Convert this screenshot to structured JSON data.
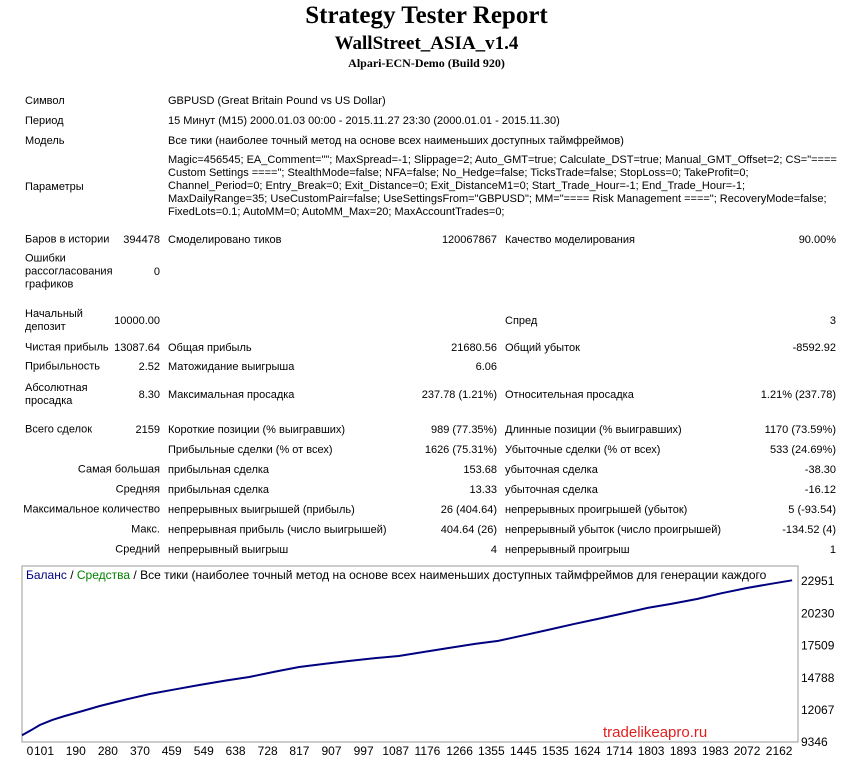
{
  "header": {
    "title": "Strategy Tester Report",
    "subtitle": "WallStreet_ASIA_v1.4",
    "build": "Alpari-ECN-Demo (Build 920)"
  },
  "info": [
    {
      "label": "Символ",
      "value": "GBPUSD (Great Britain Pound vs US Dollar)"
    },
    {
      "label": "Период",
      "value": "15 Минут (M15) 2000.01.03 00:00 - 2015.11.27 23:30 (2000.01.01 - 2015.11.30)"
    },
    {
      "label": "Модель",
      "value": "Все тики (наиболее точный метод на основе всех наименьших доступных таймфреймов)"
    }
  ],
  "params": {
    "label": "Параметры",
    "lines": [
      "Magic=456545; EA_Comment=\"\"; MaxSpread=-1; Slippage=2; Auto_GMT=true; Calculate_DST=true; Manual_GMT_Offset=2; CS=\"====",
      "Custom Settings ====\"; StealthMode=false; NFA=false; No_Hedge=false; TicksTrade=false; StopLoss=0; TakeProfit=0;",
      "Channel_Period=0; Entry_Break=0; Exit_Distance=0; Exit_DistanceM1=0; Start_Trade_Hour=-1; End_Trade_Hour=-1;",
      "MaxDailyRange=35; UseCustomPair=false; UseSettingsFrom=\"GBPUSD\"; MM=\"==== Risk Management ====\"; RecoveryMode=false;",
      "FixedLots=0.1; AutoMM=0; AutoMM_Max=20; MaxAccountTrades=0;"
    ]
  },
  "stats": [
    {
      "l1": "Баров в истории",
      "v1": "394478",
      "l2": "Смоделировано тиков",
      "v2": "120067867",
      "l3": "Качество моделирования",
      "v3": "90.00%"
    },
    {
      "l1": "Ошибки рассогласования графиков",
      "v1": "0"
    },
    {
      "l1": "Начальный депозит",
      "v1": "10000.00",
      "l3": "Спред",
      "v3": "3"
    },
    {
      "l1": "Чистая прибыль",
      "v1": "13087.64",
      "l2": "Общая прибыль",
      "v2": "21680.56",
      "l3": "Общий убыток",
      "v3": "-8592.92"
    },
    {
      "l1": "Прибыльность",
      "v1": "2.52",
      "l2": "Матожидание выигрыша",
      "v2": "6.06"
    },
    {
      "l1": "Абсолютная просадка",
      "v1": "8.30",
      "l2": "Максимальная просадка",
      "v2": "237.78 (1.21%)",
      "l3": "Относительная просадка",
      "v3": "1.21% (237.78)"
    },
    {
      "l1": "Всего сделок",
      "v1": "2159",
      "l2": "Короткие позиции (% выигравших)",
      "v2": "989 (77.35%)",
      "l3": "Длинные позиции (% выигравших)",
      "v3": "1170 (73.59%)"
    },
    {
      "l2": "Прибыльные сделки (% от всех)",
      "v2": "1626 (75.31%)",
      "l3": "Убыточные сделки (% от всех)",
      "v3": "533 (24.69%)"
    },
    {
      "l1": "Самая большая",
      "l2": "прибыльная сделка",
      "v2": "153.68",
      "l3": "убыточная сделка",
      "v3": "-38.30"
    },
    {
      "l1": "Средняя",
      "l2": "прибыльная сделка",
      "v2": "13.33",
      "l3": "убыточная сделка",
      "v3": "-16.12"
    },
    {
      "l1": "Максимальное количество",
      "l2": "непрерывных выигрышей (прибыль)",
      "v2": "26 (404.64)",
      "l3": "непрерывных проигрышей (убыток)",
      "v3": "5 (-93.54)"
    },
    {
      "l1": "Макс.",
      "l2": "непрерывная прибыль (число выигрышей)",
      "v2": "404.64 (26)",
      "l3": "непрерывный убыток (число проигрышей)",
      "v3": "-134.52 (4)"
    },
    {
      "l1": "Средний",
      "l2": "непрерывный выигрыш",
      "v2": "4",
      "l3": "непрерывный проигрыш",
      "v3": "1"
    }
  ],
  "chart_data": {
    "type": "line",
    "title": "Все тики (наиболее точный метод на основе всех наименьших доступных таймфреймов для генерации каждого",
    "equity_label": "Средства",
    "equity_color": "#008000",
    "x": [
      0,
      25,
      50,
      85,
      120,
      170,
      218,
      290,
      358,
      430,
      497,
      570,
      637,
      710,
      777,
      850,
      916,
      990,
      1056,
      1130,
      1196,
      1270,
      1335,
      1400,
      1475,
      1545,
      1615,
      1690,
      1754,
      1820,
      1894,
      1960,
      2034,
      2100,
      2159
    ],
    "series": [
      {
        "name": "Баланс",
        "color": "#000080",
        "values": [
          10000,
          10420,
          10868,
          11300,
          11628,
          12050,
          12474,
          13010,
          13488,
          13880,
          14250,
          14620,
          14925,
          15380,
          15770,
          16040,
          16277,
          16520,
          16700,
          17050,
          17376,
          17720,
          17968,
          18400,
          18898,
          19380,
          19828,
          20330,
          20757,
          21100,
          21518,
          21990,
          22448,
          22800,
          23088
        ]
      }
    ],
    "xlim": [
      0,
      2170
    ],
    "ylim": [
      9346,
      24300
    ],
    "xticks": [
      0,
      101,
      190,
      280,
      370,
      459,
      549,
      638,
      728,
      817,
      907,
      997,
      1087,
      1176,
      1266,
      1355,
      1445,
      1535,
      1624,
      1714,
      1803,
      1893,
      1983,
      2072,
      2162
    ],
    "yticks": [
      9346,
      12067,
      14788,
      17509,
      20230,
      22951
    ],
    "watermark": "tradelikeapro.ru"
  }
}
